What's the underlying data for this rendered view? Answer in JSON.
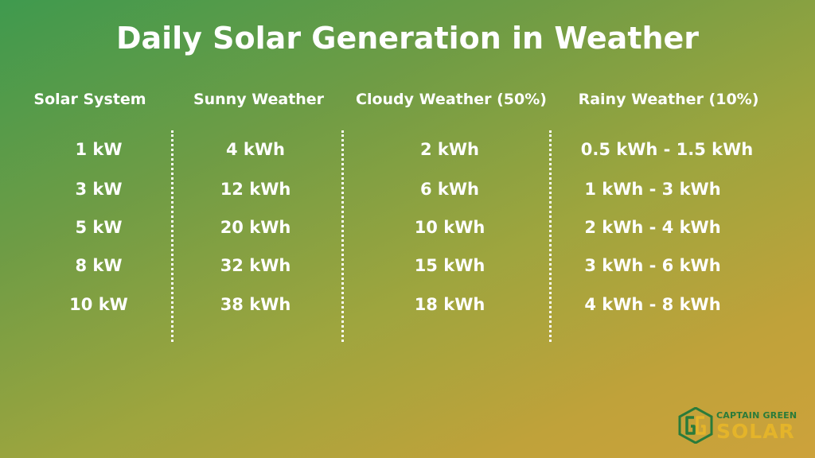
{
  "title": "Daily Solar Generation in Weather",
  "headers": [
    "Solar System",
    "Sunny Weather",
    "Cloudy Weather (50%)",
    "Rainy Weather (10%)"
  ],
  "rows": [
    [
      "1 kW",
      "4 kWh",
      "2 kWh",
      "0.5 kWh - 1.5 kWh"
    ],
    [
      "3 kW",
      "12 kWh",
      "6 kWh",
      "1 kWh - 3 kWh"
    ],
    [
      "5 kW",
      "20 kWh",
      "10 kWh",
      "2 kWh - 4 kWh"
    ],
    [
      "8 kW",
      "32 kWh",
      "15 kWh",
      "3 kWh - 6 kWh"
    ],
    [
      "10 kW",
      "38 kWh",
      "18 kWh",
      "4 kWh - 8 kWh"
    ]
  ],
  "logo": {
    "line1": "CAPTAIN GREEN",
    "line2": "SOLAR",
    "mark_icon": "cg-monogram-icon"
  },
  "colors": {
    "text": "#ffffff",
    "logo_green": "#2a7b3a",
    "logo_gold": "#e4b42a"
  }
}
